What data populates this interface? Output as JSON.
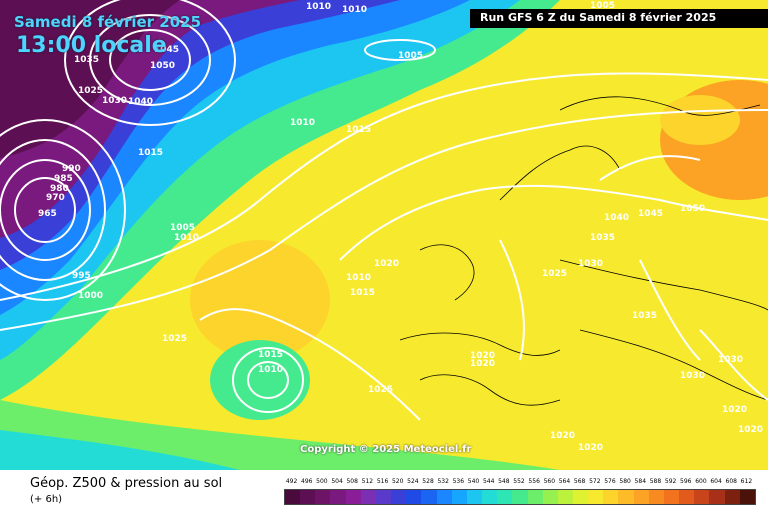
{
  "header": {
    "date": "Samedi 8 février 2025",
    "local_time": "13:00 locale",
    "run_info": "Run GFS 6 Z du Samedi 8 février 2025",
    "copyright": "Copyright © 2025 Meteociel.fr"
  },
  "footer": {
    "title": "Géop. Z500 & pression au sol",
    "lead": "(+ 6h)"
  },
  "isobar_labels": [
    "1010",
    "1005",
    "1005",
    "1010",
    "1045",
    "1050",
    "1035",
    "1025",
    "1030",
    "1040",
    "1010",
    "1015",
    "1015",
    "990",
    "985",
    "980",
    "970",
    "965",
    "1005",
    "1010",
    "995",
    "1000",
    "1025",
    "1020",
    "1010",
    "1015",
    "1015",
    "1010",
    "1025",
    "1025",
    "1030",
    "1040",
    "1045",
    "1050",
    "1035",
    "1035",
    "1020",
    "1020",
    "1030",
    "1030",
    "1020",
    "1020",
    "1020",
    "1020"
  ],
  "legend": {
    "values": [
      "492",
      "496",
      "500",
      "504",
      "508",
      "512",
      "516",
      "520",
      "524",
      "528",
      "532",
      "536",
      "540",
      "544",
      "548",
      "552",
      "556",
      "560",
      "564",
      "568",
      "572",
      "576",
      "580",
      "584",
      "588",
      "592",
      "596",
      "600",
      "604",
      "608",
      "612"
    ],
    "colors": [
      "#4a0a3c",
      "#5c0f52",
      "#6e1466",
      "#7a1a7e",
      "#8a1e98",
      "#7d2fb4",
      "#5a3acb",
      "#3a3fd8",
      "#1f4ae6",
      "#1a66f2",
      "#1a86ff",
      "#17a6ff",
      "#1cc6f0",
      "#24dcd6",
      "#2ee6b4",
      "#46ea8e",
      "#6cee6a",
      "#96f050",
      "#bdf23c",
      "#dff232",
      "#f7ea2e",
      "#fcd42c",
      "#fdbb28",
      "#fca224",
      "#f88a22",
      "#f2721e",
      "#e25a1c",
      "#c8441a",
      "#a83018",
      "#7c2010",
      "#4a1208"
    ]
  }
}
